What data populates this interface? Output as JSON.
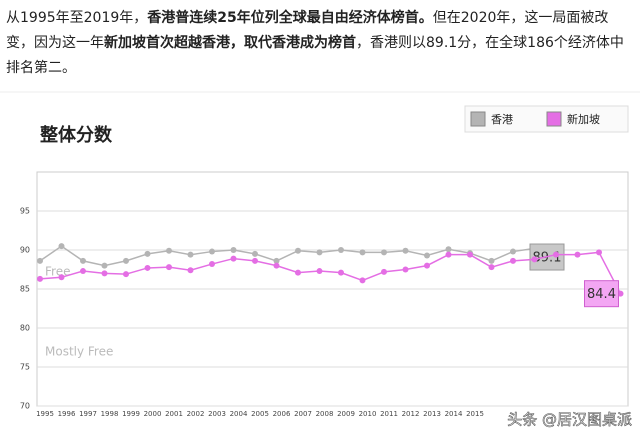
{
  "article": {
    "paragraph": [
      "从1995年至2019年，",
      "香港普连续25年位列全球最自由经济体榜首。",
      "但在2020年，这一局面被改变，因为这一年",
      "新加坡首次超越香港，取代香港成为榜首",
      "，香港则以89.1分，在全球186个经济体中排名第二。"
    ],
    "watermark": "头条 @居汉图桌派"
  },
  "chart_data": {
    "type": "line",
    "title": "整体分数",
    "categories": [
      "1995",
      "1996",
      "1997",
      "1998",
      "1999",
      "2000",
      "2001",
      "2002",
      "2003",
      "2004",
      "2005",
      "2006",
      "2007",
      "2008",
      "2009",
      "2010",
      "2011",
      "2012",
      "2013",
      "2014",
      "2015",
      null,
      null,
      null,
      null,
      null,
      null,
      null
    ],
    "series": [
      {
        "name": "香港",
        "color": "#b4b4b4",
        "values": [
          88.6,
          90.5,
          88.6,
          88.0,
          88.6,
          89.5,
          89.9,
          89.4,
          89.8,
          90.0,
          89.5,
          88.6,
          89.9,
          89.7,
          90.0,
          89.7,
          89.7,
          89.9,
          89.3,
          90.1,
          89.6,
          88.6,
          89.8,
          90.2,
          89.1,
          null,
          null,
          null
        ]
      },
      {
        "name": "新加坡",
        "color": "#e46ee4",
        "values": [
          86.3,
          86.5,
          87.3,
          87.0,
          86.9,
          87.7,
          87.8,
          87.4,
          88.2,
          88.9,
          88.6,
          88.0,
          87.1,
          87.3,
          87.1,
          86.1,
          87.2,
          87.5,
          88.0,
          89.4,
          89.4,
          87.8,
          88.6,
          88.8,
          89.4,
          89.4,
          89.7,
          84.4
        ]
      }
    ],
    "annotations": [
      "Free",
      "Mostly Free"
    ],
    "ylim": [
      70,
      100
    ],
    "yticks": [
      70,
      75,
      80,
      85,
      90,
      95
    ],
    "grid": true,
    "legend": "top-right"
  }
}
